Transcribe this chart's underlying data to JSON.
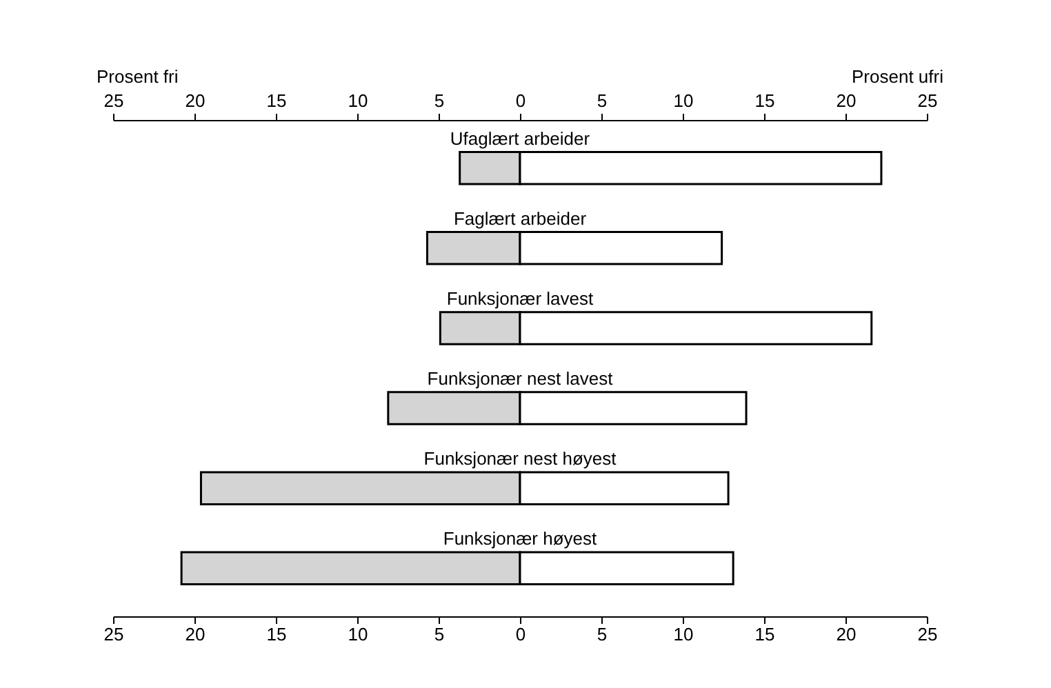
{
  "chart_data": {
    "type": "bar",
    "orientation": "horizontal",
    "stacked": true,
    "categories": [
      "Ufaglært arbeider",
      "Faglært arbeider",
      "Funksjonær lavest",
      "Funksjonær nest lavest",
      "Funksjonær nest høyest",
      "Funksjonær høyest"
    ],
    "series": [
      {
        "color": "#d4d4d4",
        "values": [
          -3.7,
          -5.7,
          -4.9,
          -8.1,
          -19.6,
          -20.8
        ]
      },
      {
        "color": "#ffffff",
        "values": [
          22.2,
          12.4,
          21.6,
          13.9,
          12.8,
          13.1
        ]
      }
    ],
    "xlim": [
      -25,
      25
    ],
    "xticks": [
      {
        "value": -25,
        "label": "25"
      },
      {
        "value": -20,
        "label": "20"
      },
      {
        "value": -15,
        "label": "15"
      },
      {
        "value": -10,
        "label": "10"
      },
      {
        "value": -5,
        "label": "5"
      },
      0,
      5,
      10,
      15,
      20,
      25
    ],
    "x2lim": [
      -25,
      25
    ],
    "x2ticks": [
      {
        "value": -25,
        "label": "25"
      },
      {
        "value": -20,
        "label": "20"
      },
      {
        "value": -15,
        "label": "15"
      },
      {
        "value": -10,
        "label": "10"
      },
      {
        "value": -5,
        "label": "5"
      },
      0,
      5,
      10,
      15,
      20,
      25
    ],
    "annotations": [
      "Prosent fri",
      "Prosent ufri"
    ],
    "grid": false
  }
}
